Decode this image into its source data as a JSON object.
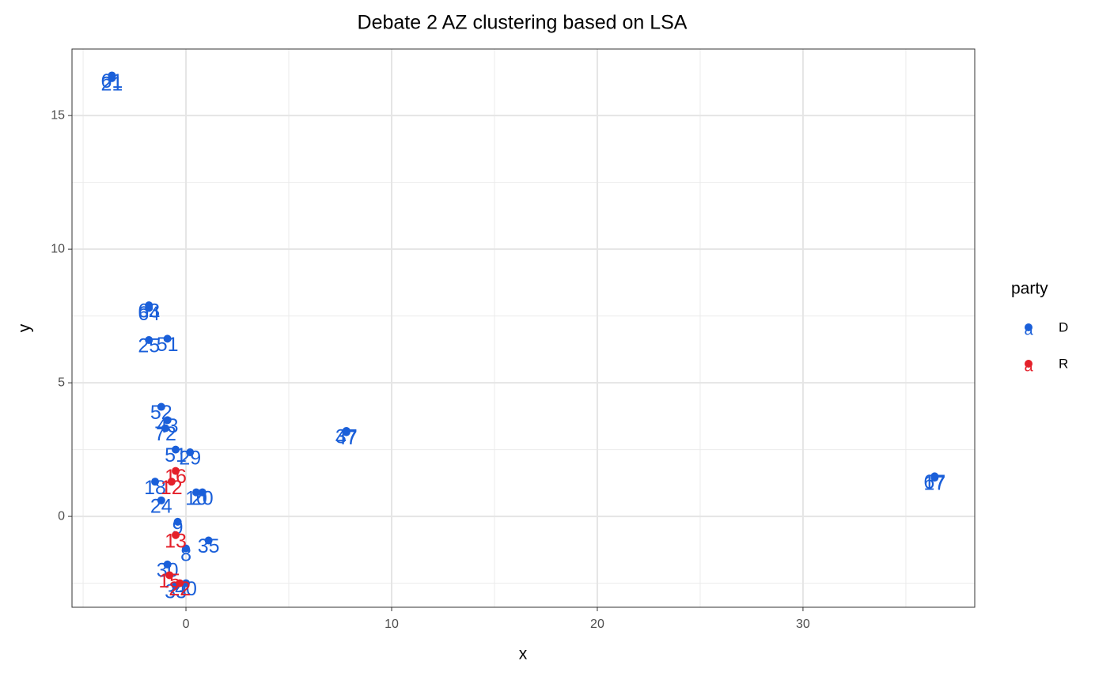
{
  "chart_data": {
    "type": "scatter",
    "title": "Debate 2 AZ clustering based on LSA",
    "x_label": "x",
    "y_label": "y",
    "xlim": [
      -5.54,
      38.35
    ],
    "ylim": [
      -3.4,
      17.49
    ],
    "xticks": [
      0,
      10,
      20,
      30
    ],
    "yticks": [
      0,
      5,
      10,
      15
    ],
    "x_minor_grid": [
      -5,
      5,
      15,
      25,
      35
    ],
    "y_minor_grid": [
      -2.5,
      2.5,
      7.5,
      12.5
    ],
    "grid": true,
    "legend_title": "party",
    "legend_glyph": "a",
    "legend_position": "right",
    "series": [
      {
        "name": "D",
        "color": "#1a5fd9",
        "x": [
          -3.6,
          -3.6,
          -1.8,
          -1.8,
          -1.8,
          -0.9,
          -1.2,
          -0.9,
          -1.0,
          7.8,
          7.8,
          36.4,
          36.4,
          -0.5,
          0.2,
          -1.5,
          0.8,
          -1.2,
          1.1,
          -0.4,
          -0.5,
          0.5,
          0.0,
          -0.9,
          0.0
        ],
        "y": [
          16.5,
          16.4,
          7.9,
          7.8,
          6.6,
          6.65,
          4.1,
          3.6,
          3.3,
          3.2,
          3.15,
          1.5,
          1.45,
          2.5,
          2.4,
          1.3,
          0.9,
          0.6,
          -0.9,
          -0.2,
          -2.6,
          0.9,
          -1.2,
          -1.8,
          -2.5
        ],
        "labels": [
          "61",
          "21",
          "63",
          "64",
          "25",
          "51",
          "52",
          "43",
          "72",
          "37",
          "47",
          "67",
          "17",
          "51",
          "29",
          "18",
          "20",
          "24",
          "35",
          "9",
          "33",
          "10",
          "8",
          "30",
          "40"
        ]
      },
      {
        "name": "R",
        "color": "#e4202a",
        "x": [
          -0.5,
          -0.7,
          -0.5,
          -0.8,
          -0.3
        ],
        "y": [
          1.7,
          1.3,
          -0.7,
          -2.2,
          -2.5
        ],
        "labels": [
          "16",
          "12",
          "13",
          "15",
          "22"
        ]
      }
    ]
  }
}
